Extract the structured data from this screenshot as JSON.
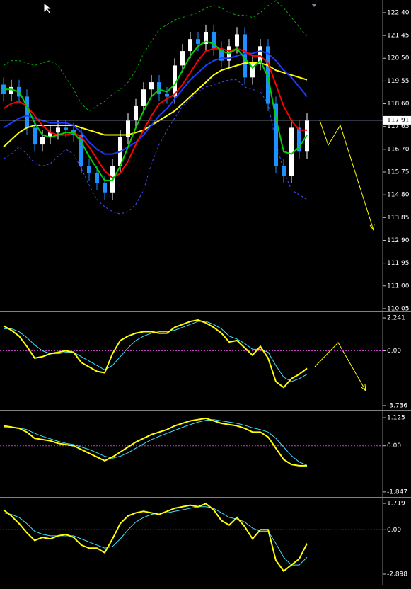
{
  "chart_data": [
    {
      "type": "candlestick",
      "ylim": [
        109.93,
        122.93
      ],
      "yticks": [
        {
          "value": 122.4,
          "label": "122.40"
        },
        121.45,
        {
          "value": 120.5,
          "label": "120.50"
        },
        119.55,
        {
          "value": 118.6,
          "label": "118.60"
        },
        117.65,
        {
          "value": 116.7,
          "label": "116.70"
        },
        115.75,
        {
          "value": 114.8,
          "label": "114.80"
        },
        113.85,
        {
          "value": 112.9,
          "label": "112.90"
        },
        111.95,
        {
          "value": 111,
          "label": "111.00"
        },
        110.05
      ],
      "current_price": 117.91,
      "bull_color": "#ffffff",
      "bear_color": "#1e90ff",
      "candles": {
        "open": [
          119.4,
          119.0,
          119.3,
          118.9,
          117.6,
          116.9,
          117.2,
          117.4,
          117.6,
          117.5,
          117.3,
          116.0,
          115.7,
          115.3,
          114.9,
          116.0,
          117.2,
          117.9,
          118.5,
          119.2,
          119.5,
          119.0,
          118.9,
          120.2,
          120.8,
          121.3,
          121.1,
          121.6,
          120.9,
          120.4,
          121.0,
          121.5,
          119.7,
          120.3,
          121.0,
          118.6,
          116.0,
          115.6,
          117.6,
          116.6
        ],
        "high": [
          119.7,
          119.6,
          119.6,
          119.2,
          117.9,
          117.5,
          117.7,
          117.9,
          117.9,
          117.8,
          117.6,
          116.3,
          116.0,
          115.6,
          116.3,
          117.5,
          118.2,
          118.8,
          119.5,
          119.8,
          119.8,
          119.3,
          120.5,
          121.1,
          121.6,
          121.6,
          121.9,
          121.9,
          121.2,
          121.3,
          121.8,
          121.8,
          120.6,
          121.3,
          121.3,
          118.9,
          116.3,
          117.9,
          117.9,
          118.2
        ],
        "low": [
          118.7,
          118.7,
          118.6,
          117.3,
          116.6,
          116.6,
          116.9,
          117.1,
          117.2,
          117.0,
          115.7,
          115.4,
          115.0,
          114.6,
          114.6,
          115.7,
          116.9,
          117.6,
          118.2,
          118.9,
          118.7,
          118.6,
          118.6,
          119.9,
          120.5,
          120.8,
          120.8,
          120.6,
          120.1,
          120.1,
          120.7,
          119.4,
          119.4,
          120.0,
          118.3,
          115.7,
          115.3,
          115.3,
          116.3,
          116.3
        ],
        "close": [
          119.0,
          119.3,
          118.9,
          117.6,
          116.9,
          117.2,
          117.4,
          117.6,
          117.5,
          117.3,
          116.0,
          115.7,
          115.3,
          114.9,
          116.0,
          117.2,
          117.9,
          118.5,
          119.2,
          119.5,
          119.0,
          118.9,
          120.2,
          120.8,
          121.3,
          121.1,
          121.6,
          120.9,
          120.4,
          121.0,
          121.5,
          119.7,
          120.3,
          121.0,
          118.6,
          116.0,
          115.6,
          117.6,
          116.6,
          117.91
        ]
      },
      "lines": [
        {
          "color": "#00b000",
          "dash": true,
          "width": 1,
          "values": [
            120.2,
            120.4,
            120.4,
            120.3,
            120.2,
            120.3,
            120.4,
            120.2,
            119.7,
            119.2,
            118.6,
            118.3,
            118.5,
            118.7,
            119.0,
            119.2,
            119.5,
            120.0,
            120.7,
            121.2,
            121.7,
            121.9,
            122.1,
            122.2,
            122.3,
            122.4,
            122.6,
            122.7,
            122.6,
            122.4,
            122.3,
            122.3,
            122.2,
            122.4,
            122.7,
            122.9,
            122.6,
            122.2,
            121.8,
            121.4
          ]
        },
        {
          "color": "#4a4aff",
          "dash": true,
          "width": 1,
          "values": [
            116.3,
            116.5,
            116.8,
            116.5,
            116.1,
            116.0,
            116.1,
            116.4,
            116.7,
            116.5,
            115.9,
            115.2,
            114.6,
            114.3,
            114.1,
            114.0,
            114.1,
            114.4,
            115.0,
            116.1,
            116.9,
            117.5,
            118.0,
            118.5,
            118.8,
            119.1,
            119.3,
            119.4,
            119.5,
            119.6,
            119.6,
            119.3,
            119.2,
            119.1,
            118.6,
            117.0,
            115.8,
            115.0,
            114.8,
            114.6
          ]
        },
        {
          "color": "#ffff00",
          "dash": false,
          "width": 2,
          "values": [
            116.8,
            117.1,
            117.4,
            117.6,
            117.7,
            117.7,
            117.7,
            117.7,
            117.7,
            117.7,
            117.6,
            117.5,
            117.4,
            117.3,
            117.3,
            117.3,
            117.3,
            117.4,
            117.5,
            117.7,
            117.9,
            118.1,
            118.3,
            118.6,
            118.9,
            119.2,
            119.5,
            119.8,
            120.0,
            120.1,
            120.2,
            120.3,
            120.3,
            120.3,
            120.2,
            120.0,
            119.9,
            119.8,
            119.7,
            119.6
          ]
        },
        {
          "color": "#1a3cff",
          "dash": false,
          "width": 2,
          "values": [
            117.6,
            117.8,
            118.0,
            118.1,
            118.0,
            117.9,
            117.8,
            117.8,
            117.8,
            117.7,
            117.4,
            117.0,
            116.7,
            116.5,
            116.5,
            116.6,
            116.8,
            117.0,
            117.3,
            117.7,
            118.1,
            118.4,
            118.8,
            119.2,
            119.6,
            119.9,
            120.2,
            120.4,
            120.5,
            120.5,
            120.6,
            120.7,
            120.7,
            120.8,
            120.7,
            120.4,
            120.0,
            119.7,
            119.3,
            118.9
          ]
        },
        {
          "color": "#ff0000",
          "dash": false,
          "width": 2,
          "values": [
            118.4,
            118.6,
            118.7,
            118.5,
            118.1,
            117.7,
            117.4,
            117.3,
            117.3,
            117.4,
            117.2,
            116.8,
            116.3,
            115.8,
            115.5,
            115.7,
            116.2,
            116.9,
            117.5,
            118.1,
            118.6,
            118.8,
            119.0,
            119.4,
            119.9,
            120.4,
            120.8,
            120.9,
            120.9,
            120.8,
            120.9,
            120.8,
            120.6,
            120.6,
            120.3,
            119.4,
            118.5,
            117.9,
            117.5,
            117.5
          ]
        },
        {
          "color": "#00d000",
          "dash": false,
          "width": 2,
          "values": [
            119.2,
            119.2,
            119.1,
            118.5,
            117.8,
            117.3,
            117.2,
            117.3,
            117.4,
            117.4,
            117.0,
            116.4,
            115.9,
            115.4,
            115.4,
            116.0,
            116.8,
            117.6,
            118.3,
            118.9,
            119.2,
            119.1,
            119.4,
            120.0,
            120.6,
            121.0,
            121.2,
            121.1,
            120.8,
            120.7,
            120.9,
            120.5,
            120.1,
            120.4,
            119.7,
            118.0,
            116.6,
            116.5,
            116.8,
            117.3
          ]
        }
      ]
    },
    {
      "type": "line",
      "ylim": [
        -4.03,
        2.63
      ],
      "yticks": [
        2.241,
        {
          "value": 0,
          "label": "0.00"
        },
        -3.736
      ],
      "series": [
        {
          "color": "#40e0ff",
          "width": 1,
          "values": [
            1.5,
            1.5,
            1.3,
            0.9,
            0.4,
            0.0,
            -0.2,
            -0.2,
            -0.1,
            -0.1,
            -0.4,
            -0.7,
            -1.0,
            -1.3,
            -1.0,
            -0.4,
            0.2,
            0.7,
            1.0,
            1.2,
            1.3,
            1.3,
            1.4,
            1.6,
            1.8,
            2.0,
            2.0,
            1.8,
            1.5,
            1.0,
            0.8,
            0.5,
            0.1,
            0.1,
            -0.1,
            -1.0,
            -1.8,
            -2.1,
            -1.9,
            -1.6
          ]
        },
        {
          "color": "#ffff00",
          "width": 2,
          "values": [
            1.7,
            1.4,
            1.0,
            0.3,
            -0.5,
            -0.4,
            -0.2,
            -0.1,
            0.0,
            -0.1,
            -0.8,
            -1.1,
            -1.4,
            -1.5,
            -0.2,
            0.7,
            1.0,
            1.2,
            1.3,
            1.3,
            1.2,
            1.2,
            1.6,
            1.8,
            2.0,
            2.1,
            1.9,
            1.6,
            1.2,
            0.6,
            0.7,
            0.2,
            -0.3,
            0.3,
            -0.5,
            -2.1,
            -2.5,
            -1.9,
            -1.6,
            -1.2
          ]
        }
      ]
    },
    {
      "type": "line",
      "ylim": [
        -2.05,
        1.41
      ],
      "yticks": [
        1.125,
        {
          "value": 0,
          "label": "0.00"
        },
        -1.847
      ],
      "series": [
        {
          "color": "#40e0ff",
          "width": 1,
          "values": [
            0.75,
            0.75,
            0.72,
            0.65,
            0.5,
            0.38,
            0.28,
            0.18,
            0.1,
            0.05,
            -0.05,
            -0.15,
            -0.28,
            -0.42,
            -0.5,
            -0.42,
            -0.28,
            -0.1,
            0.08,
            0.25,
            0.38,
            0.5,
            0.62,
            0.74,
            0.85,
            0.95,
            1.02,
            1.05,
            1.0,
            0.95,
            0.9,
            0.82,
            0.72,
            0.65,
            0.55,
            0.3,
            -0.05,
            -0.4,
            -0.65,
            -0.78
          ]
        },
        {
          "color": "#ffff00",
          "width": 2,
          "values": [
            0.8,
            0.75,
            0.7,
            0.55,
            0.3,
            0.25,
            0.2,
            0.1,
            0.05,
            0.0,
            -0.15,
            -0.3,
            -0.45,
            -0.6,
            -0.45,
            -0.25,
            -0.05,
            0.15,
            0.3,
            0.45,
            0.55,
            0.65,
            0.8,
            0.9,
            1.0,
            1.05,
            1.1,
            1.0,
            0.9,
            0.85,
            0.8,
            0.7,
            0.55,
            0.55,
            0.35,
            -0.1,
            -0.55,
            -0.75,
            -0.8,
            -0.8
          ]
        }
      ]
    },
    {
      "type": "line",
      "ylim": [
        -3.59,
        2.09
      ],
      "yticks": [
        1.719,
        {
          "value": 0,
          "label": "0.00"
        },
        -2.898
      ],
      "series": [
        {
          "color": "#40e0ff",
          "width": 1,
          "values": [
            1.1,
            1.0,
            0.8,
            0.4,
            -0.1,
            -0.3,
            -0.4,
            -0.4,
            -0.4,
            -0.4,
            -0.6,
            -0.8,
            -1.0,
            -1.2,
            -1.1,
            -0.6,
            0.0,
            0.5,
            0.8,
            1.0,
            1.1,
            1.1,
            1.2,
            1.3,
            1.4,
            1.5,
            1.5,
            1.4,
            1.1,
            0.8,
            0.7,
            0.5,
            0.1,
            -0.1,
            -0.1,
            -0.9,
            -1.8,
            -2.3,
            -2.3,
            -1.8
          ]
        },
        {
          "color": "#ffff00",
          "width": 2,
          "values": [
            1.3,
            0.9,
            0.4,
            -0.2,
            -0.7,
            -0.5,
            -0.6,
            -0.4,
            -0.3,
            -0.5,
            -1.0,
            -1.2,
            -1.2,
            -1.5,
            -0.6,
            0.4,
            0.9,
            1.1,
            1.2,
            1.1,
            1.0,
            1.2,
            1.4,
            1.5,
            1.6,
            1.5,
            1.7,
            1.3,
            0.6,
            0.3,
            0.8,
            0.2,
            -0.6,
            0.0,
            0.0,
            -2.0,
            -2.7,
            -2.3,
            -1.9,
            -0.9
          ]
        }
      ]
    }
  ]
}
